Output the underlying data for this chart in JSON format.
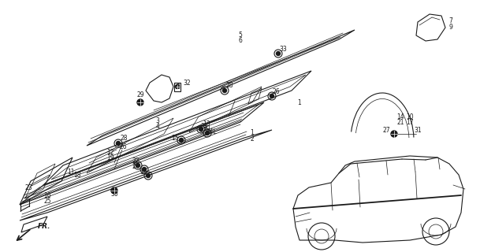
{
  "bg_color": "#ffffff",
  "line_color": "#1a1a1a",
  "fig_width": 6.09,
  "fig_height": 3.2,
  "dpi": 100
}
